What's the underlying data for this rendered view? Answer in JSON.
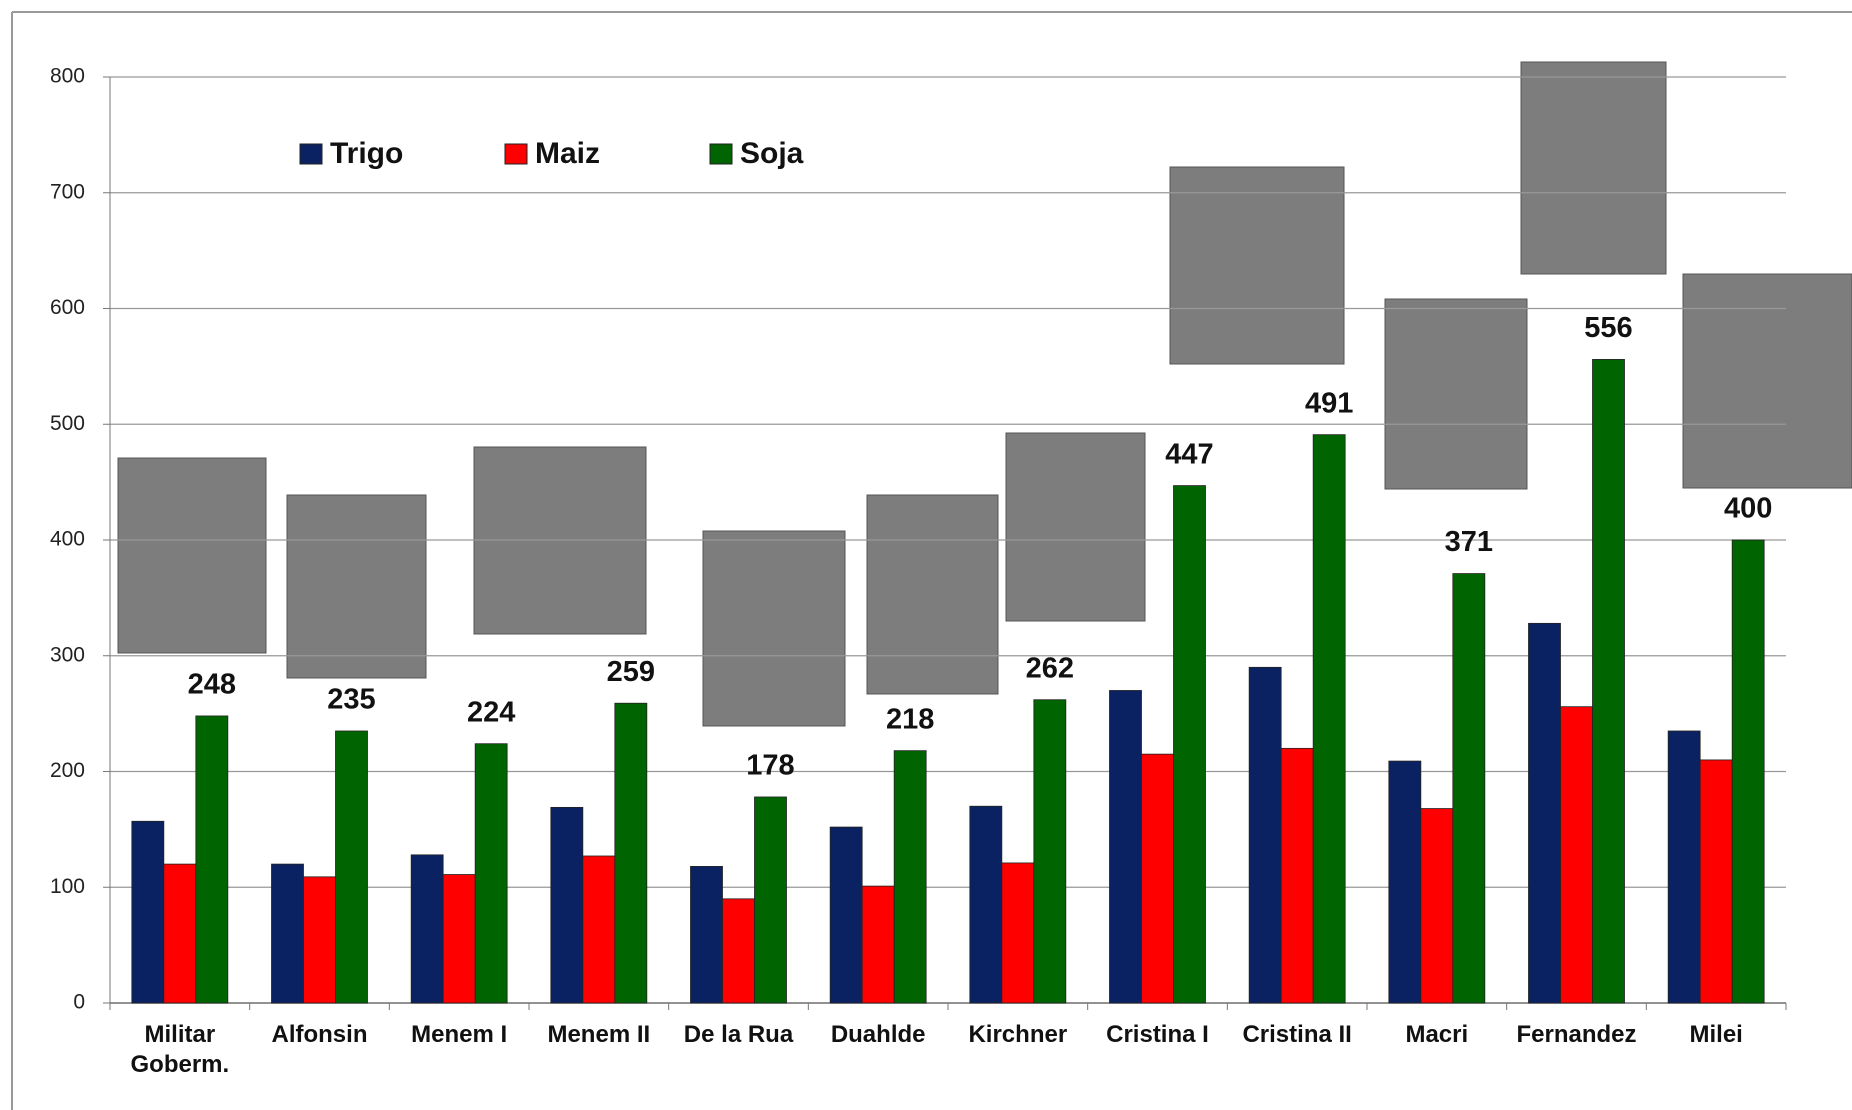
{
  "chart_data": {
    "type": "bar",
    "categories": [
      "Militar Goberm.",
      "Alfonsin",
      "Menem I",
      "Menem II",
      "De la Rua",
      "Duahlde",
      "Kirchner",
      "Cristina I",
      "Cristina II",
      "Macri",
      "Fernandez",
      "Milei"
    ],
    "series": [
      {
        "name": "Trigo",
        "color": "#0a2261",
        "values": [
          157,
          120,
          128,
          169,
          118,
          152,
          170,
          270,
          290,
          209,
          328,
          235
        ]
      },
      {
        "name": "Maiz",
        "color": "#ff0000",
        "values": [
          120,
          109,
          111,
          127,
          90,
          101,
          121,
          215,
          220,
          168,
          256,
          210
        ]
      },
      {
        "name": "Soja",
        "color": "#006400",
        "values": [
          248,
          235,
          224,
          259,
          178,
          218,
          262,
          447,
          491,
          371,
          556,
          400
        ],
        "show_labels": true
      }
    ],
    "ylim": [
      0,
      800
    ],
    "yticks": [
      0,
      100,
      200,
      300,
      400,
      500,
      600,
      700,
      800
    ],
    "grid": true,
    "legend": "top-left"
  }
}
